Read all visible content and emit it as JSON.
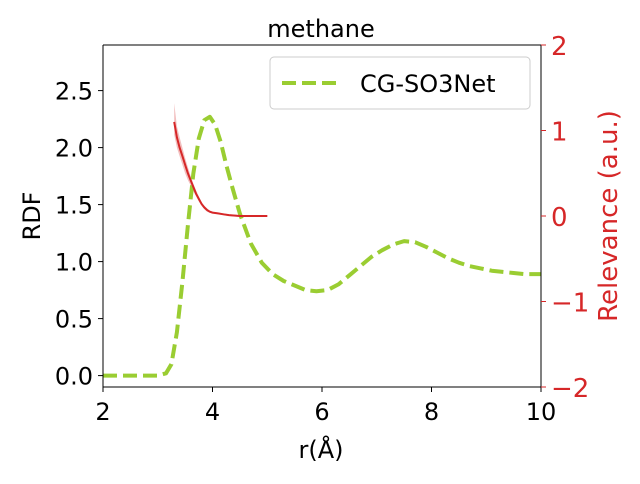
{
  "chart_data": {
    "type": "line",
    "title": "methane",
    "xlabel": "r(Å)",
    "ylabel": "RDF",
    "y2label": "Relevance (a.u.)",
    "xlim": [
      2,
      10
    ],
    "ylim": [
      -0.1,
      2.9
    ],
    "y2lim": [
      -2,
      2
    ],
    "x_ticks": [
      2,
      4,
      6,
      8,
      10
    ],
    "y_ticks": [
      0.0,
      0.5,
      1.0,
      1.5,
      2.0,
      2.5
    ],
    "y_tick_labels": [
      "0.0",
      "0.5",
      "1.0",
      "1.5",
      "2.0",
      "2.5"
    ],
    "y2_ticks": [
      -2,
      -1,
      0,
      1,
      2
    ],
    "y2_tick_labels": [
      "−2",
      "−1",
      "0",
      "1",
      "2"
    ],
    "grid": false,
    "legend_position": "top-right",
    "colors": {
      "rdf": "#9acd32",
      "relevance": "#d62728",
      "relevance_band": "#e88a8b",
      "axis2": "#d62728"
    },
    "series": [
      {
        "name": "CG-SO3Net",
        "axis": "left",
        "style": "dashed",
        "x": [
          2.0,
          2.5,
          3.0,
          3.15,
          3.25,
          3.35,
          3.45,
          3.55,
          3.65,
          3.75,
          3.85,
          3.95,
          4.05,
          4.15,
          4.25,
          4.35,
          4.5,
          4.7,
          4.9,
          5.1,
          5.3,
          5.5,
          5.7,
          5.9,
          6.1,
          6.3,
          6.5,
          6.7,
          6.9,
          7.1,
          7.3,
          7.5,
          7.7,
          7.9,
          8.1,
          8.3,
          8.5,
          8.7,
          8.9,
          9.1,
          9.3,
          9.5,
          9.7,
          10.0
        ],
        "y": [
          0.0,
          0.0,
          0.0,
          0.02,
          0.1,
          0.38,
          0.82,
          1.32,
          1.77,
          2.08,
          2.24,
          2.27,
          2.2,
          2.05,
          1.85,
          1.67,
          1.42,
          1.16,
          0.99,
          0.89,
          0.83,
          0.79,
          0.75,
          0.74,
          0.75,
          0.8,
          0.88,
          0.96,
          1.04,
          1.1,
          1.15,
          1.18,
          1.17,
          1.13,
          1.08,
          1.03,
          0.99,
          0.96,
          0.94,
          0.92,
          0.91,
          0.9,
          0.89,
          0.89
        ]
      },
      {
        "name": "",
        "axis": "right",
        "style": "solid",
        "x": [
          3.3,
          3.35,
          3.4,
          3.45,
          3.5,
          3.55,
          3.6,
          3.65,
          3.7,
          3.75,
          3.8,
          3.85,
          3.9,
          3.95,
          4.0,
          4.1,
          4.2,
          4.3,
          4.5,
          4.7,
          5.0
        ],
        "y": [
          1.1,
          0.92,
          0.8,
          0.7,
          0.6,
          0.5,
          0.42,
          0.34,
          0.26,
          0.2,
          0.14,
          0.1,
          0.07,
          0.05,
          0.04,
          0.03,
          0.02,
          0.01,
          0.0,
          0.0,
          0.0
        ],
        "y_upper": [
          1.32,
          1.05,
          0.92,
          0.8,
          0.68,
          0.57,
          0.47,
          0.38,
          0.3,
          0.23,
          0.16,
          0.12,
          0.09,
          0.06,
          0.05,
          0.04,
          0.03,
          0.02,
          0.01,
          0.01,
          0.01
        ],
        "y_lower": [
          0.95,
          0.8,
          0.7,
          0.6,
          0.5,
          0.42,
          0.36,
          0.29,
          0.23,
          0.17,
          0.12,
          0.08,
          0.05,
          0.04,
          0.03,
          0.02,
          0.01,
          0.0,
          -0.01,
          -0.01,
          -0.01
        ]
      }
    ]
  }
}
